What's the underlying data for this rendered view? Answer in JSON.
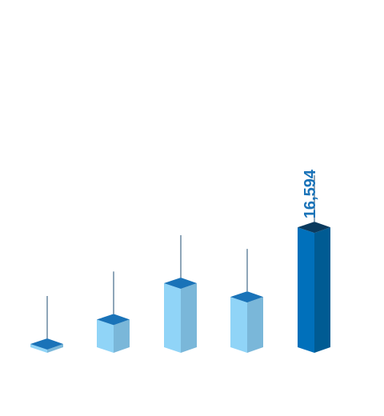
{
  "chart_data": {
    "type": "bar",
    "style": "3d-column",
    "categories": [
      "",
      "",
      "",
      "",
      ""
    ],
    "values": [
      1000,
      4400,
      9200,
      7400,
      16594
    ],
    "value_labels": [
      "",
      "",
      "",
      "",
      "16,594"
    ],
    "highlight_index": 4,
    "ylim": [
      0,
      16594
    ],
    "grid": false,
    "legend": "none",
    "colors": {
      "bar_front": "#90d4f7",
      "bar_side": "#7ab7d9",
      "bar_top": "#1a73b8",
      "highlight_front": "#0070bb",
      "highlight_side": "#005b93",
      "highlight_top": "#0a3a5e",
      "leader_line": "#1f4e73",
      "label_text": "#1a73b8"
    }
  }
}
